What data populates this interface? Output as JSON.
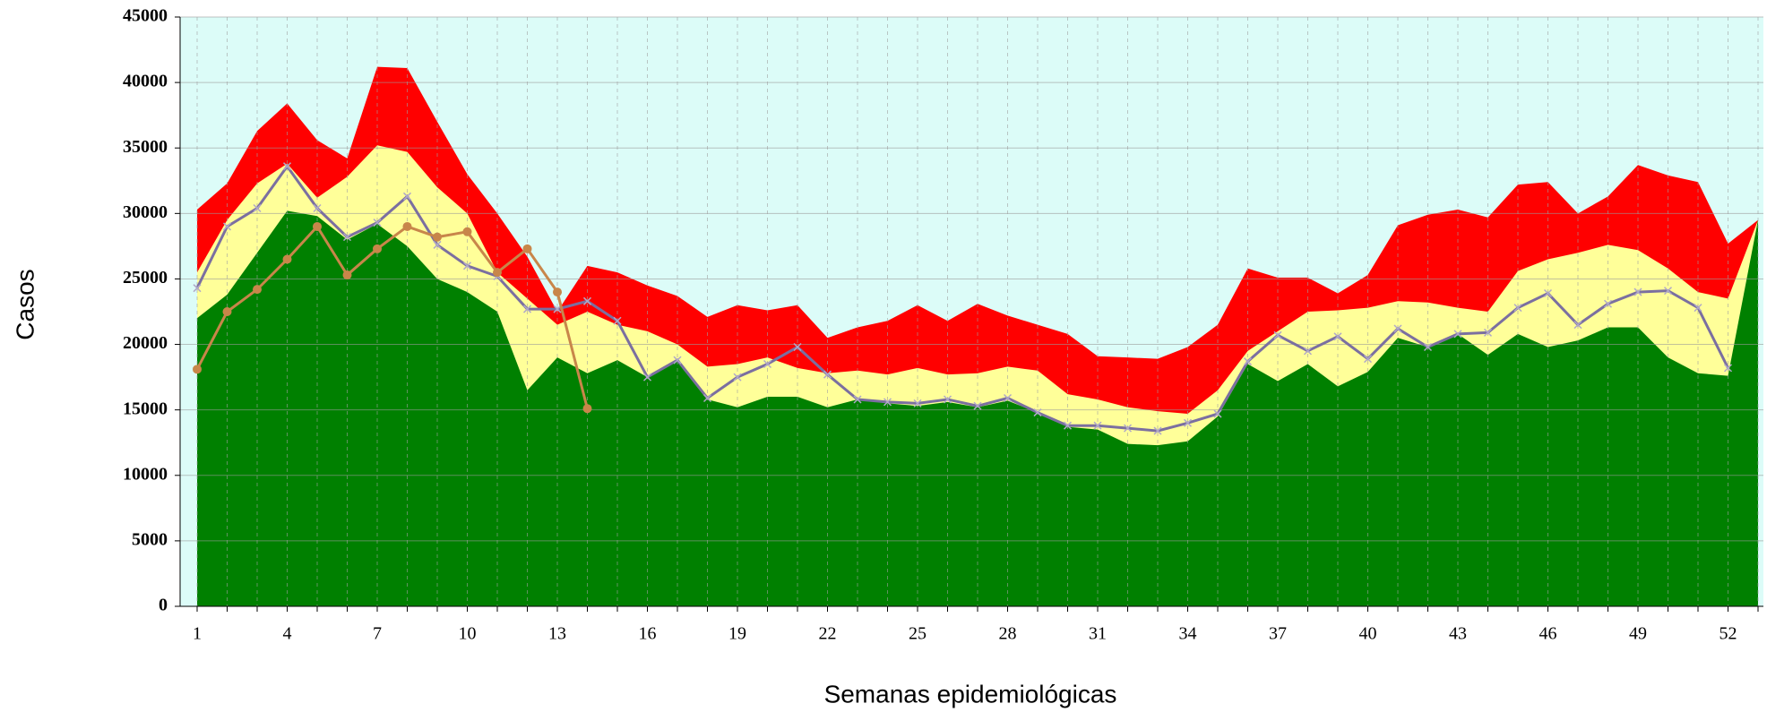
{
  "chart_data": {
    "type": "area",
    "y_label": "Casos",
    "x_label": "Semanas epidemiológicas",
    "categories": [
      1,
      null,
      null,
      4,
      null,
      null,
      7,
      null,
      null,
      10,
      null,
      null,
      13,
      null,
      null,
      16,
      null,
      null,
      19,
      null,
      null,
      22,
      null,
      null,
      25,
      null,
      null,
      28,
      null,
      null,
      31,
      null,
      null,
      34,
      null,
      null,
      37,
      null,
      null,
      40,
      null,
      null,
      43,
      null,
      null,
      46,
      null,
      null,
      49,
      null,
      null,
      52,
      null
    ],
    "ylim": [
      0,
      45000
    ],
    "yticks": [
      0,
      5000,
      10000,
      15000,
      20000,
      25000,
      30000,
      35000,
      40000,
      45000
    ],
    "grid": true,
    "background": "#dcfcf8",
    "series": [
      {
        "kind": "area",
        "color": "#ff0000",
        "values": [
          30300,
          32300,
          36300,
          38400,
          35600,
          34200,
          41200,
          41100,
          37000,
          33000,
          30000,
          26700,
          22500,
          26000,
          25500,
          24500,
          23700,
          22100,
          23000,
          22600,
          23000,
          20500,
          21300,
          21800,
          23000,
          21800,
          23100,
          22200,
          21500,
          20800,
          19100,
          19000,
          18900,
          19800,
          21500,
          25800,
          25100,
          25100,
          23900,
          25300,
          29100,
          29900,
          30300,
          29700,
          32200,
          32400,
          30000,
          31300,
          33700,
          32900,
          32400,
          27700,
          29500
        ]
      },
      {
        "kind": "area",
        "color": "#ffff99",
        "values": [
          25500,
          29500,
          32300,
          33800,
          31200,
          32800,
          35200,
          34700,
          32000,
          30000,
          25500,
          23500,
          21500,
          22500,
          21500,
          21000,
          20000,
          18300,
          18500,
          19000,
          18200,
          17800,
          18000,
          17700,
          18200,
          17700,
          17800,
          18300,
          18000,
          16200,
          15800,
          15200,
          14900,
          14700,
          16500,
          19500,
          21000,
          22500,
          22600,
          22800,
          23300,
          23200,
          22800,
          22500,
          25600,
          26500,
          27000,
          27600,
          27200,
          25800,
          24000,
          23500,
          29500
        ]
      },
      {
        "kind": "area",
        "color": "#008000",
        "values": [
          22000,
          23800,
          27000,
          30200,
          29800,
          28000,
          29200,
          27500,
          25000,
          24000,
          22500,
          16500,
          19000,
          17800,
          18800,
          17500,
          18800,
          15800,
          15200,
          16000,
          16000,
          15200,
          15800,
          15500,
          15300,
          15600,
          15200,
          15700,
          14800,
          13700,
          13500,
          12400,
          12300,
          12600,
          14500,
          18500,
          17200,
          18500,
          16800,
          17900,
          20500,
          19800,
          20800,
          19200,
          20800,
          19800,
          20300,
          21300,
          21300,
          19000,
          17800,
          17600,
          29500
        ]
      },
      {
        "kind": "line",
        "marker": "x",
        "color": "#7b6fa0",
        "values": [
          24300,
          29000,
          30400,
          33600,
          30400,
          28200,
          29300,
          31300,
          27600,
          26000,
          25200,
          22700,
          22700,
          23300,
          21800,
          17500,
          18800,
          15900,
          17500,
          18500,
          19800,
          17700,
          15800,
          15600,
          15500,
          15800,
          15300,
          15900,
          14800,
          13800,
          13800,
          13600,
          13400,
          14000,
          14700,
          18700,
          20700,
          19500,
          20600,
          18900,
          21200,
          19800,
          20800,
          20900,
          22800,
          23900,
          21500,
          23100,
          24000,
          24100,
          22800,
          18200,
          null
        ]
      },
      {
        "kind": "line",
        "marker": "circle",
        "color": "#c8864a",
        "values": [
          18100,
          22500,
          24200,
          26500,
          29000,
          25300,
          27300,
          29000,
          28200,
          28600,
          25500,
          27300,
          24000,
          15100,
          null,
          null,
          null,
          null,
          null,
          null,
          null,
          null,
          null,
          null,
          null,
          null,
          null,
          null,
          null,
          null,
          null,
          null,
          null,
          null,
          null,
          null,
          null,
          null,
          null,
          null,
          null,
          null,
          null,
          null,
          null,
          null,
          null,
          null,
          null,
          null,
          null,
          null,
          null
        ]
      }
    ]
  }
}
